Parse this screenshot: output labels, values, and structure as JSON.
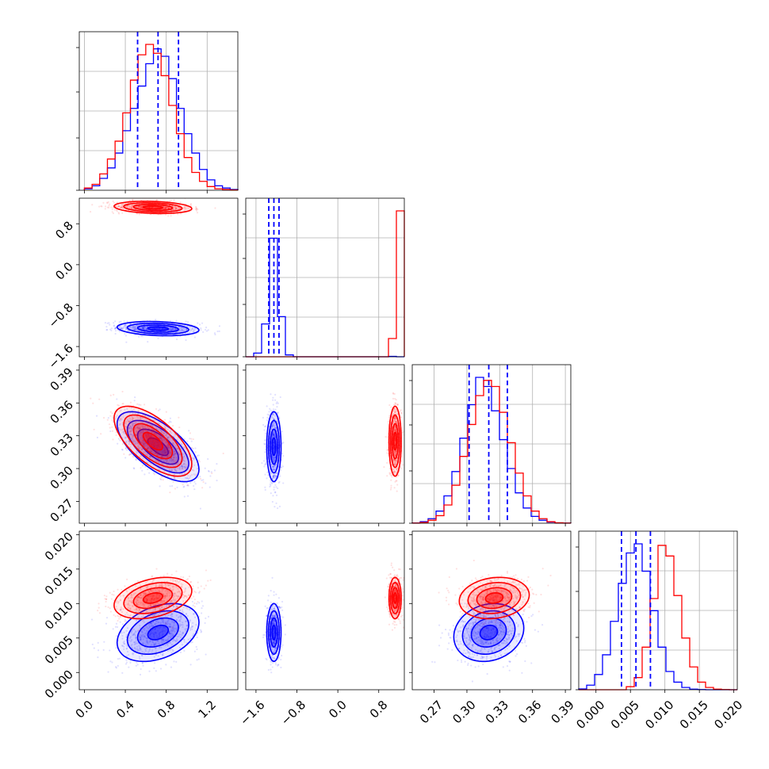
{
  "chart_data": {
    "type": "corner",
    "params": [
      {
        "range": [
          -0.05,
          1.5
        ],
        "ticks": [
          0.0,
          0.4,
          0.8,
          1.2
        ],
        "tick_labels": [
          "0.0",
          "0.4",
          "0.8",
          "1.2"
        ]
      },
      {
        "range": [
          -1.8,
          1.3
        ],
        "ticks": [
          -1.6,
          -0.8,
          0.0,
          0.8
        ],
        "tick_labels": [
          "−1.6",
          "−0.8",
          "0.0",
          "0.8"
        ]
      },
      {
        "range": [
          0.25,
          0.395
        ],
        "ticks": [
          0.27,
          0.3,
          0.33,
          0.36,
          0.39
        ],
        "tick_labels": [
          "0.27",
          "0.30",
          "0.33",
          "0.36",
          "0.39"
        ]
      },
      {
        "range": [
          -0.0025,
          0.0205
        ],
        "ticks": [
          0.0,
          0.005,
          0.01,
          0.015,
          0.02
        ],
        "tick_labels": [
          "0.000",
          "0.005",
          "0.010",
          "0.015",
          "0.020"
        ]
      }
    ],
    "series": [
      {
        "color": "#0000ff",
        "means": [
          0.72,
          -1.25,
          0.32,
          0.0058
        ],
        "sigmas": [
          0.2,
          0.07,
          0.016,
          0.0021
        ],
        "quantiles": [
          [
            0.52,
            0.72,
            0.92
          ],
          [
            -1.35,
            -1.25,
            -1.15
          ],
          [
            0.302,
            0.32,
            0.337
          ],
          [
            0.0037,
            0.0058,
            0.0079
          ]
        ]
      },
      {
        "color": "#ff0000",
        "means": [
          0.67,
          1.12,
          0.325,
          0.0108
        ],
        "sigmas": [
          0.19,
          0.06,
          0.016,
          0.0015
        ]
      }
    ],
    "correlations": {
      "0-2": -0.65,
      "0-3": 0.35,
      "2-3": 0.15,
      "1-2": 0.0,
      "1-3": 0.0,
      "0-1": -0.2
    },
    "histograms": [
      {
        "bins": [
          0.0,
          0.075,
          0.15,
          0.225,
          0.3,
          0.375,
          0.45,
          0.525,
          0.6,
          0.675,
          0.75,
          0.825,
          0.9,
          0.975,
          1.05,
          1.125,
          1.2,
          1.275,
          1.35,
          1.425,
          1.5
        ],
        "blue": [
          0.01,
          0.03,
          0.08,
          0.15,
          0.25,
          0.4,
          0.55,
          0.7,
          0.85,
          0.95,
          0.9,
          0.75,
          0.55,
          0.38,
          0.25,
          0.14,
          0.07,
          0.03,
          0.015,
          0.005
        ],
        "red": [
          0.015,
          0.04,
          0.11,
          0.21,
          0.33,
          0.52,
          0.74,
          0.91,
          0.98,
          0.92,
          0.77,
          0.57,
          0.38,
          0.22,
          0.12,
          0.06,
          0.025,
          0.01,
          0.005,
          0.002
        ]
      },
      {
        "bins": [
          -1.8,
          -1.645,
          -1.49,
          -1.335,
          -1.18,
          -1.025,
          -0.87,
          -0.715,
          -0.56,
          -0.405,
          -0.25,
          -0.095,
          0.06,
          0.215,
          0.37,
          0.525,
          0.68,
          0.835,
          0.99,
          1.145,
          1.3
        ],
        "blue": [
          0,
          0.02,
          0.18,
          0.65,
          0.22,
          0.01,
          0,
          0,
          0,
          0,
          0,
          0,
          0,
          0,
          0,
          0,
          0,
          0,
          0.002,
          0
        ],
        "red": [
          0,
          0,
          0,
          0,
          0,
          0,
          0,
          0,
          0,
          0,
          0,
          0,
          0,
          0,
          0,
          0,
          0,
          0,
          0.1,
          0.8
        ]
      },
      {
        "bins": [
          0.25,
          0.25725,
          0.2645,
          0.27175,
          0.279,
          0.28625,
          0.2935,
          0.30075,
          0.308,
          0.31525,
          0.3225,
          0.32975,
          0.337,
          0.34425,
          0.3515,
          0.35875,
          0.366,
          0.37325,
          0.3805,
          0.38775,
          0.395
        ],
        "blue": [
          0.002,
          0.01,
          0.03,
          0.08,
          0.18,
          0.34,
          0.56,
          0.78,
          0.96,
          0.9,
          0.74,
          0.55,
          0.36,
          0.2,
          0.1,
          0.045,
          0.02,
          0.007,
          0.002,
          0.001
        ],
        "red": [
          0.001,
          0.005,
          0.02,
          0.05,
          0.12,
          0.25,
          0.44,
          0.65,
          0.84,
          0.94,
          0.9,
          0.73,
          0.53,
          0.33,
          0.18,
          0.08,
          0.03,
          0.01,
          0.003,
          0.001
        ]
      },
      {
        "bins": [
          -0.0025,
          -0.00135,
          -0.0002,
          0.00095,
          0.0021,
          0.00325,
          0.0044,
          0.00555,
          0.0067,
          0.00785,
          0.009,
          0.01015,
          0.0113,
          0.01245,
          0.0136,
          0.01475,
          0.0159,
          0.01705,
          0.0182,
          0.01935,
          0.0205
        ],
        "blue": [
          0.005,
          0.03,
          0.1,
          0.23,
          0.45,
          0.7,
          0.9,
          0.96,
          0.78,
          0.52,
          0.28,
          0.12,
          0.05,
          0.015,
          0.004,
          0.001,
          0,
          0,
          0,
          0
        ],
        "red": [
          0,
          0,
          0,
          0,
          0,
          0,
          0.02,
          0.08,
          0.28,
          0.6,
          0.95,
          0.88,
          0.62,
          0.34,
          0.15,
          0.05,
          0.015,
          0.004,
          0.001,
          0
        ]
      }
    ]
  }
}
